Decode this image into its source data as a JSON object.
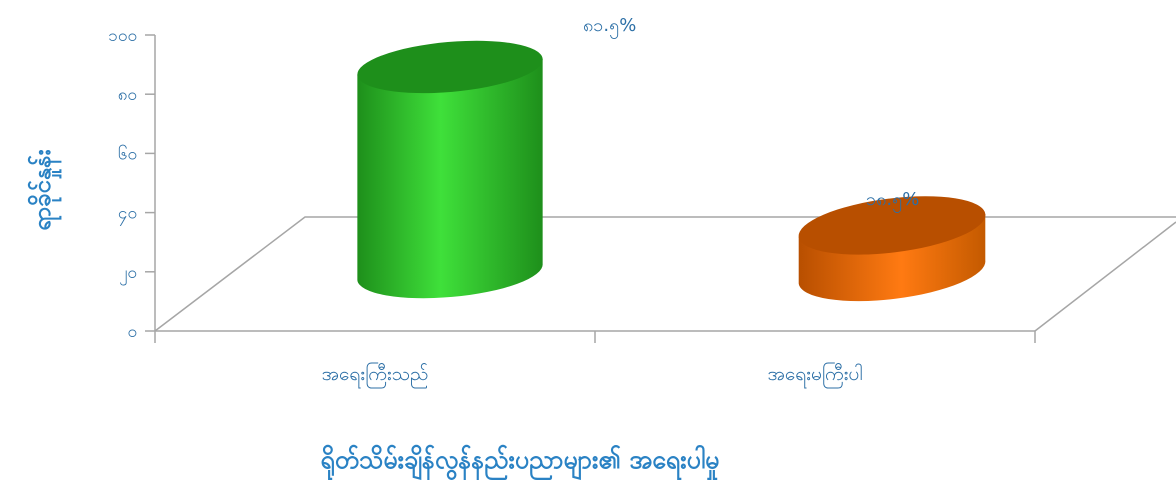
{
  "chart_data": {
    "type": "bar",
    "style": "3d-cylinder",
    "categories": [
      "အရေးကြီးသည်",
      "အရေးမကြီးပါ"
    ],
    "values": [
      81.5,
      18.5
    ],
    "data_labels": [
      "၈၁.၅%",
      "၁၈.၅%"
    ],
    "y_ticks": [
      "၀",
      "၂၀",
      "၄၀",
      "၆၀",
      "၈၀",
      "၁၀၀"
    ],
    "ylim": [
      0,
      100
    ],
    "title": "",
    "xlabel": "ရိုတ်သိမ်းချိန်လွန်နည်းပညာများ၏ အရေးပါမှု",
    "ylabel": "ရာခိုင်နှုန်း",
    "grid": false,
    "legend": "none",
    "colors": {
      "bar1_light": "#3fe03a",
      "bar1_dark": "#1e8f1b",
      "bar2_light": "#ff7a12",
      "bar2_dark": "#b84f00",
      "text": "#2c6fa6",
      "axis_title": "#2a82c4",
      "floor": "#a6a6a6"
    }
  }
}
